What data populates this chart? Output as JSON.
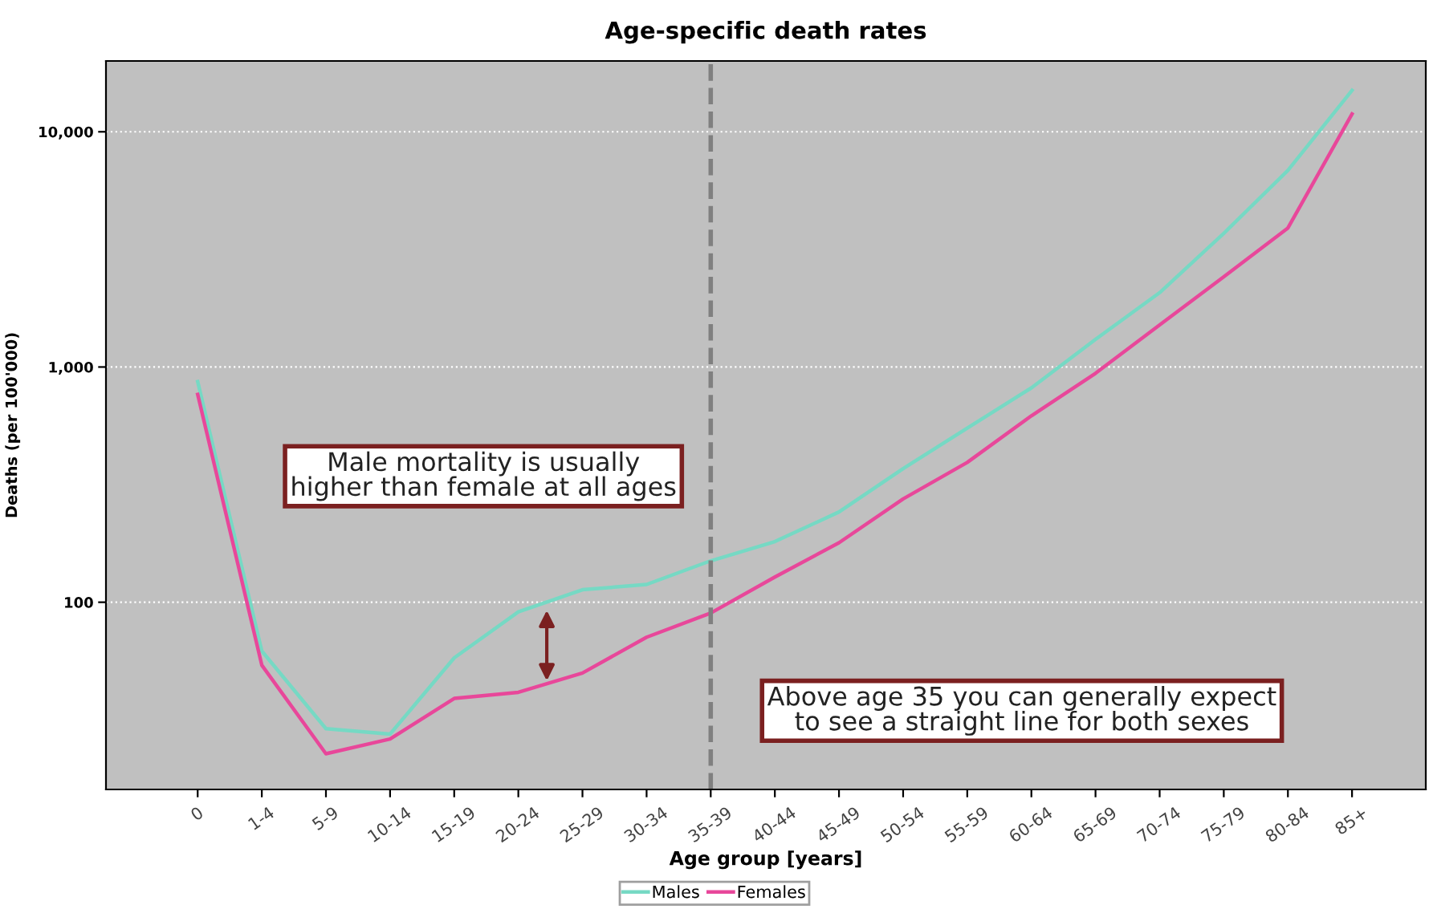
{
  "chart_data": {
    "type": "line",
    "title": "Age-specific death rates",
    "xlabel": "Age group [years]",
    "ylabel": "Deaths (per 100'000)",
    "categories": [
      "0",
      "1-4",
      "5-9",
      "10-14",
      "15-19",
      "20-24",
      "25-29",
      "30-34",
      "35-39",
      "40-44",
      "45-49",
      "50-54",
      "55-59",
      "60-64",
      "65-69",
      "70-74",
      "75-79",
      "80-84",
      "85+"
    ],
    "series": [
      {
        "name": "Males",
        "color": "#76d9c4",
        "values": [
          867,
          62,
          29,
          27.5,
          58,
          91,
          113,
          119,
          150,
          181,
          242,
          370,
          550,
          815,
          1310,
          2070,
          3700,
          6850,
          15000
        ]
      },
      {
        "name": "Females",
        "color": "#e8479a",
        "values": [
          765,
          54,
          22.7,
          26.2,
          39,
          41.4,
          50,
          71,
          90,
          128,
          179,
          275,
          393,
          620,
          940,
          1510,
          2420,
          3900,
          11900
        ]
      }
    ],
    "log": "y",
    "ylim": [
      16,
      20000
    ],
    "yticks": [
      {
        "value": 100,
        "label": "100"
      },
      {
        "value": 1000,
        "label": "1,000"
      },
      {
        "value": 10000,
        "label": "10,000"
      }
    ],
    "grid": "y",
    "legend": "bottom",
    "marker": "none",
    "line_style": "solid",
    "ref_lines": [
      {
        "axis": "x",
        "value": "35-39",
        "color": "#808080",
        "line_style": "dashed"
      }
    ],
    "annotations": [
      "Male mortality is usually\nhigher than female at all ages",
      "Above age 35 you can generally expect\nto see a straight line for both sexes"
    ]
  }
}
